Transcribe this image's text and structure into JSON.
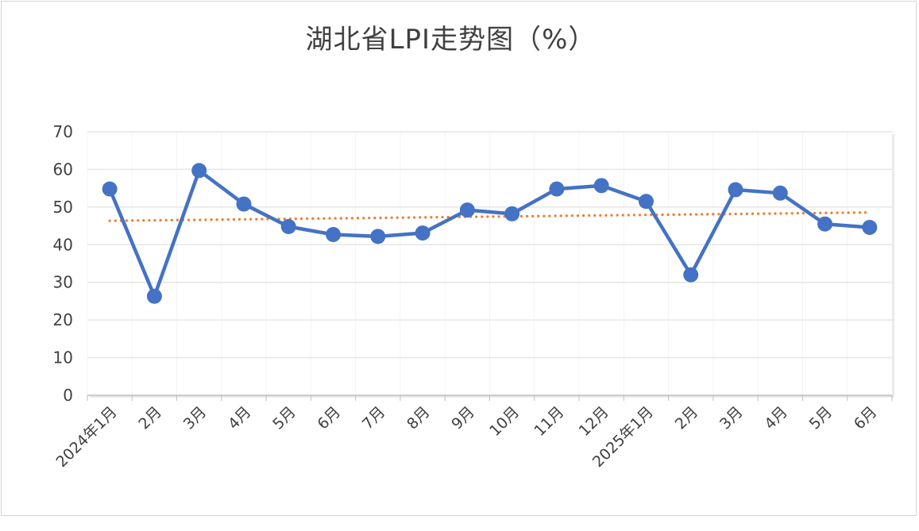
{
  "chart_data": {
    "type": "line",
    "title": "湖北省LPI走势图（%）",
    "categories": [
      "2024年1月",
      "2月",
      "3月",
      "4月",
      "5月",
      "6月",
      "7月",
      "8月",
      "9月",
      "10月",
      "11月",
      "12月",
      "2025年1月",
      "2月",
      "3月",
      "4月",
      "5月",
      "6月"
    ],
    "series": [
      {
        "values": [
          54.8,
          26.3,
          59.7,
          50.8,
          44.8,
          42.7,
          42.2,
          43.1,
          49.2,
          48.2,
          54.8,
          55.7,
          51.5,
          32.0,
          54.6,
          53.7,
          45.5,
          44.6
        ],
        "color": "#4472c4"
      }
    ],
    "trendline": {
      "type": "linear",
      "style": "dotted",
      "color": "#ed7d31"
    },
    "ylim": [
      0,
      70
    ],
    "yticks": [
      0,
      10,
      20,
      30,
      40,
      50,
      60,
      70
    ],
    "grid": true,
    "legend": "none",
    "xlabel": "",
    "ylabel": ""
  }
}
